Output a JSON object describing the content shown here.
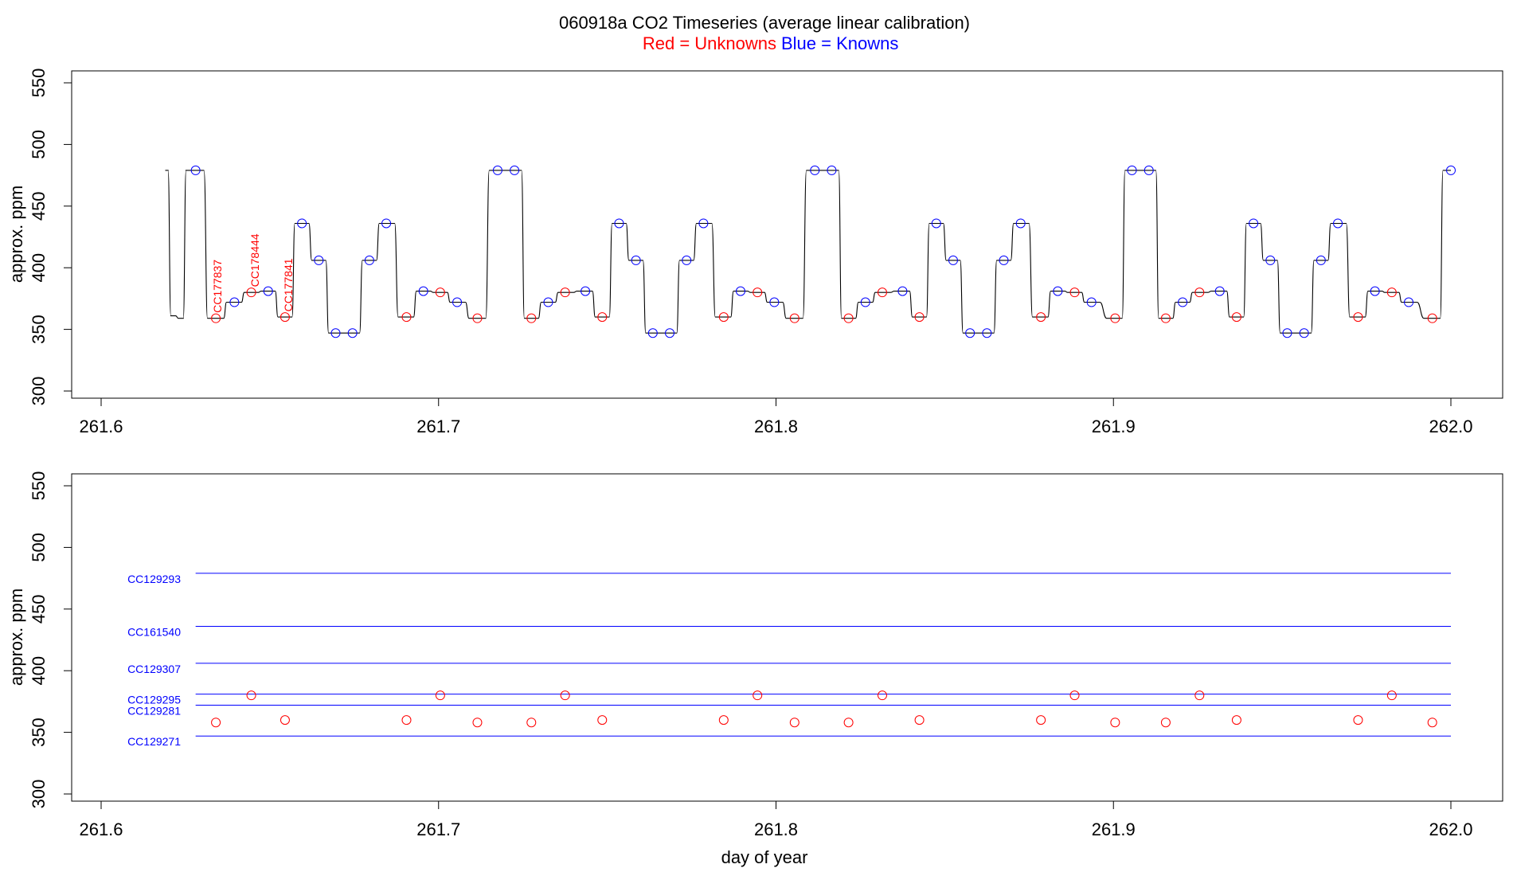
{
  "title": {
    "main": "060918a   CO2 Timeseries (average linear calibration)",
    "legend_red": "Red = Unknowns",
    "legend_blue": "Blue = Knowns"
  },
  "colors": {
    "unknown": "#ff0000",
    "known": "#0000ff",
    "trace": "#000000"
  },
  "chart_data": [
    {
      "type": "line",
      "panel": "top",
      "ylabel": "approx. ppm",
      "xlabel": "",
      "xlim": [
        261.6,
        262.0
      ],
      "ylim": [
        300,
        550
      ],
      "xticks": [
        "261.6",
        "261.7",
        "261.8",
        "261.9",
        "262.0"
      ],
      "yticks": [
        "300",
        "350",
        "400",
        "450",
        "500",
        "550"
      ],
      "series": [
        {
          "name": "Knowns",
          "marker": "circle",
          "x": [
            261.628,
            261.6395,
            261.6495,
            261.6595,
            261.6645,
            261.6695,
            261.6745,
            261.6795,
            261.6845,
            261.6955,
            261.7055,
            261.7175,
            261.7225,
            261.7325,
            261.7435,
            261.7535,
            261.7585,
            261.7635,
            261.7685,
            261.7735,
            261.7785,
            261.7895,
            261.7995,
            261.8115,
            261.8165,
            261.8265,
            261.8375,
            261.8475,
            261.8525,
            261.8575,
            261.8625,
            261.8675,
            261.8725,
            261.8835,
            261.8935,
            261.9055,
            261.9105,
            261.9205,
            261.9315,
            261.9415,
            261.9465,
            261.9515,
            261.9565,
            261.9615,
            261.9665,
            261.9775,
            261.9875,
            262.0
          ],
          "y": [
            479,
            372,
            381,
            436,
            406,
            347,
            347,
            406,
            436,
            381,
            372,
            479,
            479,
            372,
            381,
            436,
            406,
            347,
            347,
            406,
            436,
            381,
            372,
            479,
            479,
            372,
            381,
            436,
            406,
            347,
            347,
            406,
            436,
            381,
            372,
            479,
            479,
            372,
            381,
            436,
            406,
            347,
            347,
            406,
            436,
            381,
            372,
            479
          ]
        },
        {
          "name": "Unknowns",
          "marker": "circle",
          "x": [
            261.634,
            261.6445,
            261.6545,
            261.6905,
            261.7005,
            261.7115,
            261.7275,
            261.7375,
            261.7485,
            261.7845,
            261.7945,
            261.8055,
            261.8215,
            261.8315,
            261.8425,
            261.8785,
            261.8885,
            261.9005,
            261.9155,
            261.9255,
            261.9365,
            261.9725,
            261.9825,
            261.9945
          ],
          "y": [
            359,
            380,
            360,
            360,
            380,
            359,
            359,
            380,
            360,
            360,
            380,
            359,
            359,
            380,
            360,
            360,
            380,
            359,
            359,
            380,
            360,
            360,
            380,
            359
          ]
        }
      ],
      "annotations": [
        {
          "text": "CC177837",
          "x": 261.6345,
          "y": 385,
          "color": "#ff0000"
        },
        {
          "text": "CC178444",
          "x": 261.6455,
          "y": 406,
          "color": "#ff0000"
        },
        {
          "text": "CC177841",
          "x": 261.6555,
          "y": 386,
          "color": "#ff0000"
        }
      ]
    },
    {
      "type": "scatter",
      "panel": "bottom",
      "ylabel": "approx. ppm",
      "xlabel": "day of year",
      "xlim": [
        261.6,
        262.0
      ],
      "ylim": [
        300,
        550
      ],
      "xticks": [
        "261.6",
        "261.7",
        "261.8",
        "261.9",
        "262.0"
      ],
      "yticks": [
        "300",
        "350",
        "400",
        "450",
        "500",
        "550"
      ],
      "reference_lines": [
        {
          "label": "CC129293",
          "value": 479
        },
        {
          "label": "CC161540",
          "value": 436
        },
        {
          "label": "CC129307",
          "value": 406
        },
        {
          "label": "CC129295",
          "value": 381
        },
        {
          "label": "CC129281",
          "value": 372
        },
        {
          "label": "CC129271",
          "value": 347
        }
      ],
      "reference_x_range": [
        261.628,
        262.0
      ],
      "series": [
        {
          "name": "Unknowns",
          "marker": "circle",
          "x": [
            261.634,
            261.6445,
            261.6545,
            261.6905,
            261.7005,
            261.7115,
            261.7275,
            261.7375,
            261.7485,
            261.7845,
            261.7945,
            261.8055,
            261.8215,
            261.8315,
            261.8425,
            261.8785,
            261.8885,
            261.9005,
            261.9155,
            261.9255,
            261.9365,
            261.9725,
            261.9825,
            261.9945
          ],
          "y": [
            358,
            380,
            360,
            360,
            380,
            358,
            358,
            380,
            360,
            360,
            380,
            358,
            358,
            380,
            360,
            360,
            380,
            358,
            358,
            380,
            360,
            360,
            380,
            358
          ]
        }
      ]
    }
  ]
}
